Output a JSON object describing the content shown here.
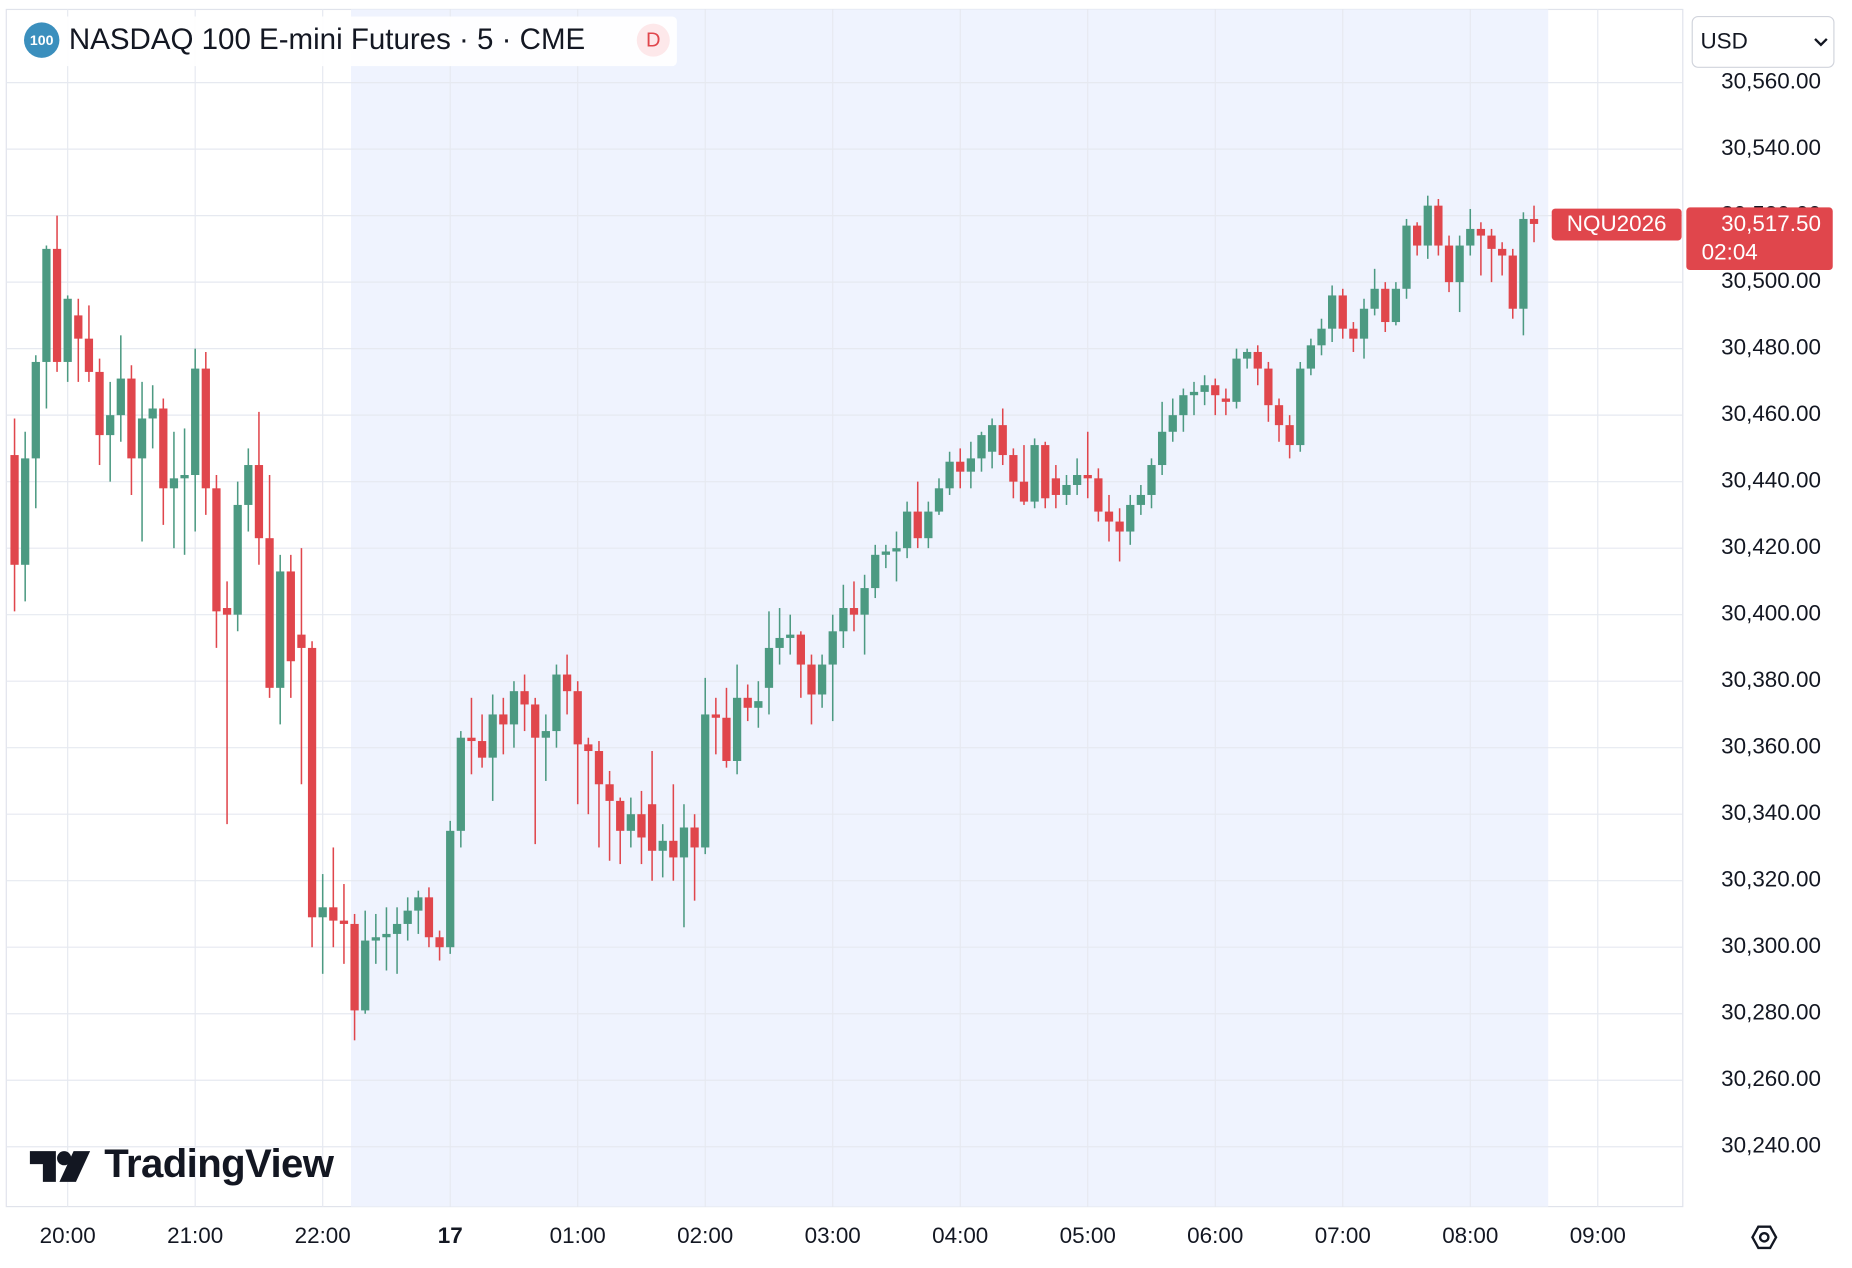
{
  "chart_data": {
    "type": "candlestick",
    "icon": "100",
    "title": "NASDAQ 100 E-mini Futures · 5 · CME",
    "badge": "D",
    "currency": "USD",
    "watermark": "TradingView",
    "symbol": "NQU2026",
    "last_price": {
      "value": 30517.5,
      "label": "30,517.50"
    },
    "countdown": "02:04",
    "up_color": "#4c9a82",
    "down_color": "#e0464c",
    "grid": true,
    "ylim": [
      30222,
      30582
    ],
    "yticks": [
      {
        "value": 30240,
        "label": "30,240.00"
      },
      {
        "value": 30260,
        "label": "30,260.00"
      },
      {
        "value": 30280,
        "label": "30,280.00"
      },
      {
        "value": 30300,
        "label": "30,300.00"
      },
      {
        "value": 30320,
        "label": "30,320.00"
      },
      {
        "value": 30340,
        "label": "30,340.00"
      },
      {
        "value": 30360,
        "label": "30,360.00"
      },
      {
        "value": 30380,
        "label": "30,380.00"
      },
      {
        "value": 30400,
        "label": "30,400.00"
      },
      {
        "value": 30420,
        "label": "30,420.00"
      },
      {
        "value": 30440,
        "label": "30,440.00"
      },
      {
        "value": 30460,
        "label": "30,460.00"
      },
      {
        "value": 30480,
        "label": "30,480.00"
      },
      {
        "value": 30500,
        "label": "30,500.00"
      },
      {
        "value": 30520,
        "label": "30,520.00"
      },
      {
        "value": 30540,
        "label": "30,540.00"
      },
      {
        "value": 30560,
        "label": "30,560.00"
      }
    ],
    "categories": [
      null,
      null,
      null,
      null,
      null,
      "20:00",
      null,
      null,
      null,
      null,
      null,
      null,
      null,
      null,
      null,
      null,
      null,
      "21:00",
      null,
      null,
      null,
      null,
      null,
      null,
      null,
      null,
      null,
      null,
      null,
      "22:00",
      null,
      null,
      null,
      null,
      null,
      null,
      null,
      null,
      null,
      null,
      null,
      "17",
      null,
      null,
      null,
      null,
      null,
      null,
      null,
      null,
      null,
      null,
      null,
      "01:00",
      null,
      null,
      null,
      null,
      null,
      null,
      null,
      null,
      null,
      null,
      null,
      "02:00",
      null,
      null,
      null,
      null,
      null,
      null,
      null,
      null,
      null,
      null,
      null,
      "03:00",
      null,
      null,
      null,
      null,
      null,
      null,
      null,
      null,
      null,
      null,
      null,
      "04:00",
      null,
      null,
      null,
      null,
      null,
      null,
      null,
      null,
      null,
      null,
      null,
      "05:00",
      null,
      null,
      null,
      null,
      null,
      null,
      null,
      null,
      null,
      null,
      null,
      "06:00",
      null,
      null,
      null,
      null,
      null,
      null,
      null,
      null,
      null,
      null,
      null,
      "07:00",
      null,
      null,
      null,
      null,
      null,
      null,
      null,
      null,
      null,
      null,
      null,
      "08:00",
      null,
      null,
      null,
      null,
      null,
      null,
      null,
      null,
      null,
      null,
      null,
      "09:00"
    ],
    "open": [
      30448,
      30415,
      30447,
      30476,
      30510,
      30476,
      30490,
      30483,
      30473,
      30454,
      30460,
      30471,
      30447,
      30459,
      30462,
      30438,
      30441,
      30442,
      30474,
      30438,
      30402,
      30400,
      30433,
      30445,
      30423,
      30378,
      30413,
      30394,
      30390,
      30309,
      30312,
      30308,
      30307,
      30281,
      30302,
      30303,
      30304,
      30307,
      30311,
      30315,
      30303,
      30300,
      30335,
      30363,
      30362,
      30357,
      30370,
      30367,
      30377,
      30373,
      30363,
      30365,
      30382,
      30377,
      30361,
      30359,
      30349,
      30344,
      30335,
      30340,
      30343,
      30329,
      30332,
      30327,
      30336,
      30330,
      30370,
      30369,
      30356,
      30375,
      30372,
      30378,
      30390,
      30393,
      30394,
      30385,
      30376,
      30385,
      30395,
      30402,
      30400,
      30408,
      30418,
      30419,
      30420,
      30431,
      30423,
      30431,
      30438,
      30446,
      30443,
      30447,
      30449,
      30457,
      30448,
      30440,
      30434,
      30451,
      30441,
      30436,
      30439,
      30442,
      30441,
      30431,
      30428,
      30425,
      30433,
      30436,
      30445,
      30455,
      30460,
      30466,
      30467,
      30469,
      30465,
      30464,
      30477,
      30479,
      30474,
      30463,
      30457,
      30451,
      30474,
      30481,
      30486,
      30496,
      30486,
      30483,
      30492,
      30498,
      30488,
      30498,
      30517,
      30511,
      30523,
      30511,
      30500,
      30511,
      30516,
      30514,
      30510,
      30508,
      30492,
      30519,
      null,
      null,
      null,
      null,
      null,
      null
    ],
    "high": [
      30459,
      30455,
      30478,
      30511,
      30520,
      30496,
      30495,
      30493,
      30477,
      30470,
      30484,
      30475,
      30470,
      30469,
      30465,
      30455,
      30456,
      30480,
      30479,
      30442,
      30410,
      30440,
      30450,
      30461,
      30442,
      30418,
      30418,
      30420,
      30392,
      30322,
      30330,
      30319,
      30310,
      30311,
      30310,
      30312,
      30312,
      30315,
      30317,
      30318,
      30305,
      30338,
      30365,
      30375,
      30370,
      30376,
      30375,
      30380,
      30382,
      30375,
      30370,
      30385,
      30388,
      30380,
      30363,
      30362,
      30353,
      30345,
      30345,
      30347,
      30359,
      30337,
      30349,
      30343,
      30340,
      30381,
      30375,
      30378,
      30385,
      30379,
      30380,
      30401,
      30402,
      30400,
      30395,
      30388,
      30388,
      30400,
      30409,
      30410,
      30412,
      30421,
      30421,
      30425,
      30434,
      30440,
      30434,
      30441,
      30449,
      30450,
      30452,
      30455,
      30459,
      30462,
      30450,
      30451,
      30453,
      30452,
      30445,
      30442,
      30447,
      30455,
      30444,
      30436,
      30432,
      30436,
      30439,
      30447,
      30464,
      30465,
      30468,
      30470,
      30472,
      30471,
      30468,
      30480,
      30480,
      30481,
      30476,
      30465,
      30460,
      30476,
      30483,
      30489,
      30499,
      30498,
      30488,
      30495,
      30504,
      30500,
      30500,
      30519,
      30518,
      30526,
      30525,
      30514,
      30514,
      30522,
      30518,
      30516,
      30512,
      30510,
      30521,
      30523,
      null,
      null,
      null,
      null,
      null,
      null
    ],
    "low": [
      30401,
      30404,
      30432,
      30462,
      30473,
      30470,
      30470,
      30470,
      30445,
      30440,
      30452,
      30436,
      30422,
      30450,
      30427,
      30420,
      30418,
      30425,
      30430,
      30390,
      30337,
      30395,
      30425,
      30415,
      30375,
      30367,
      30375,
      30349,
      30300,
      30292,
      30300,
      30295,
      30272,
      30280,
      30295,
      30293,
      30292,
      30302,
      30304,
      30300,
      30296,
      30298,
      30330,
      30352,
      30354,
      30344,
      30358,
      30360,
      30365,
      30331,
      30350,
      30360,
      30370,
      30343,
      30340,
      30330,
      30326,
      30325,
      30330,
      30325,
      30320,
      30321,
      30320,
      30306,
      30314,
      30328,
      30358,
      30354,
      30352,
      30368,
      30366,
      30370,
      30385,
      30388,
      30375,
      30367,
      30372,
      30368,
      30390,
      30395,
      30388,
      30405,
      30414,
      30410,
      30417,
      30420,
      30420,
      30430,
      30436,
      30438,
      30438,
      30443,
      30444,
      30445,
      30435,
      30433,
      30432,
      30432,
      30432,
      30433,
      30436,
      30435,
      30428,
      30422,
      30416,
      30421,
      30430,
      30432,
      30442,
      30452,
      30455,
      30460,
      30463,
      30460,
      30460,
      30462,
      30474,
      30469,
      30458,
      30452,
      30447,
      30449,
      30472,
      30478,
      30482,
      30483,
      30479,
      30477,
      30490,
      30485,
      30487,
      30495,
      30508,
      30507,
      30508,
      30497,
      30491,
      30508,
      30502,
      30500,
      30502,
      30489,
      30484,
      30512,
      null,
      null,
      null,
      null,
      null,
      null
    ],
    "close": [
      30415,
      30447,
      30476,
      30510,
      30476,
      30495,
      30483,
      30473,
      30454,
      30460,
      30471,
      30447,
      30459,
      30462,
      30438,
      30441,
      30442,
      30474,
      30438,
      30401,
      30400,
      30433,
      30445,
      30423,
      30378,
      30413,
      30386,
      30390,
      30309,
      30312,
      30308,
      30307,
      30281,
      30302,
      30303,
      30304,
      30307,
      30311,
      30315,
      30303,
      30300,
      30335,
      30363,
      30362,
      30357,
      30370,
      30367,
      30377,
      30373,
      30363,
      30365,
      30382,
      30377,
      30361,
      30359,
      30349,
      30344,
      30335,
      30340,
      30333,
      30329,
      30332,
      30327,
      30336,
      30330,
      30370,
      30369,
      30356,
      30375,
      30372,
      30374,
      30390,
      30393,
      30394,
      30385,
      30376,
      30385,
      30395,
      30402,
      30400,
      30408,
      30418,
      30419,
      30420,
      30431,
      30423,
      30431,
      30438,
      30446,
      30443,
      30447,
      30454,
      30457,
      30448,
      30440,
      30434,
      30451,
      30435,
      30436,
      30439,
      30442,
      30441,
      30431,
      30428,
      30425,
      30433,
      30436,
      30445,
      30455,
      30460,
      30466,
      30467,
      30469,
      30466,
      30464,
      30477,
      30479,
      30474,
      30463,
      30457,
      30451,
      30474,
      30481,
      30486,
      30496,
      30486,
      30483,
      30492,
      30498,
      30488,
      30498,
      30517,
      30511,
      30523,
      30511,
      30500,
      30511,
      30516,
      30514,
      30510,
      30508,
      30492,
      30519,
      30517.5,
      null,
      null,
      null,
      null,
      null,
      null
    ]
  }
}
